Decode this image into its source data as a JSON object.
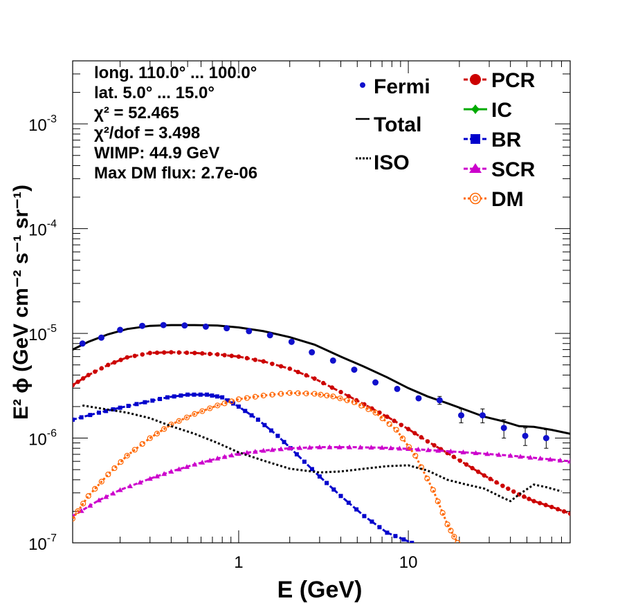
{
  "chart_data": {
    "type": "scatter",
    "xlabel": "E (GeV)",
    "ylabel": "E² ϕ (GeV cm⁻² s⁻¹ sr⁻¹)",
    "xscale": "log",
    "yscale": "log",
    "xlim": [
      0.105,
      90
    ],
    "ylim": [
      1e-07,
      0.004
    ],
    "x_ticks": [
      {
        "v": 1,
        "label": "1"
      },
      {
        "v": 10,
        "label": "10"
      }
    ],
    "y_ticks": [
      {
        "v": 1e-07,
        "base": "10",
        "exp": "-7"
      },
      {
        "v": 1e-06,
        "base": "10",
        "exp": "-6"
      },
      {
        "v": 1e-05,
        "base": "10",
        "exp": "-5"
      },
      {
        "v": 0.0001,
        "base": "10",
        "exp": "-4"
      },
      {
        "v": 0.001,
        "base": "10",
        "exp": "-3"
      }
    ],
    "info": [
      "long. 110.0° ... 100.0°",
      "lat. 5.0° ... 15.0°",
      "χ² = 52.465",
      "χ²/dof = 3.498",
      "WIMP: 44.9 GeV",
      "Max DM flux: 2.7e-06"
    ],
    "legend_left": [
      {
        "name": "Fermi",
        "style": "dot",
        "color": "#0000ff"
      },
      {
        "name": "Total",
        "style": "line",
        "color": "#000000"
      },
      {
        "name": "ISO",
        "style": "dotted",
        "color": "#000000"
      }
    ],
    "legend_right": [
      {
        "name": "PCR",
        "style": "circle",
        "color": "#cc0000"
      },
      {
        "name": "IC",
        "style": "cross",
        "color": "#00aa00"
      },
      {
        "name": "BR",
        "style": "square",
        "color": "#0000cc"
      },
      {
        "name": "SCR",
        "style": "triangle",
        "color": "#cc00cc"
      },
      {
        "name": "DM",
        "style": "opencircle",
        "color": "#ff6600"
      }
    ],
    "fermi": {
      "x": [
        0.12,
        0.155,
        0.2,
        0.27,
        0.36,
        0.48,
        0.64,
        0.85,
        1.15,
        1.53,
        2.05,
        2.7,
        3.6,
        4.8,
        6.4,
        8.6,
        11.5,
        15.3,
        20.5,
        27.4,
        36.6,
        48.9,
        65
      ],
      "y": [
        8e-06,
        9.1e-06,
        1.08e-05,
        1.18e-05,
        1.2e-05,
        1.19e-05,
        1.16e-05,
        1.12e-05,
        1.05e-05,
        9.6e-06,
        8.3e-06,
        6.6e-06,
        5.5e-06,
        4.5e-06,
        3.4e-06,
        2.95e-06,
        2.4e-06,
        2.3e-06,
        1.65e-06,
        1.65e-06,
        1.25e-06,
        1.05e-06,
        1e-06
      ],
      "err": [
        0.0,
        0.0,
        0.0,
        0.0,
        0.0,
        0.0,
        0.0,
        0.0,
        0.0,
        0.0,
        0.0,
        0.0,
        0.0,
        0.0,
        0.0,
        0.0,
        0.0,
        2e-07,
        2.5e-07,
        2.5e-07,
        2.5e-07,
        2e-07,
        2e-07
      ]
    },
    "series": [
      {
        "name": "Total",
        "color": "#000000",
        "style": "solid",
        "x": [
          0.105,
          0.13,
          0.17,
          0.22,
          0.3,
          0.4,
          0.55,
          0.75,
          1.0,
          1.4,
          2.0,
          2.8,
          4.0,
          5.5,
          7.5,
          10,
          13,
          17,
          22,
          28,
          36,
          45,
          55,
          70,
          90
        ],
        "y": [
          7e-06,
          8.3e-06,
          9.8e-06,
          1.1e-05,
          1.18e-05,
          1.2e-05,
          1.2e-05,
          1.19e-05,
          1.14e-05,
          1.05e-05,
          9.2e-06,
          7.8e-06,
          6e-06,
          4.8e-06,
          3.8e-06,
          3e-06,
          2.5e-06,
          2.15e-06,
          1.85e-06,
          1.6e-06,
          1.45e-06,
          1.3e-06,
          1.28e-06,
          1.2e-06,
          1.1e-06
        ]
      },
      {
        "name": "PCR",
        "color": "#cc0000",
        "style": "dashed",
        "marker": "circle",
        "x": [
          0.105,
          0.13,
          0.17,
          0.22,
          0.3,
          0.4,
          0.55,
          0.75,
          1.0,
          1.4,
          2.0,
          2.8,
          4.0,
          5.5,
          7.5,
          10,
          13,
          17,
          22,
          28,
          36,
          45,
          55,
          70,
          90
        ],
        "y": [
          3.2e-06,
          4e-06,
          5e-06,
          5.9e-06,
          6.5e-06,
          6.6e-06,
          6.5e-06,
          6.3e-06,
          6e-06,
          5.4e-06,
          4.6e-06,
          3.7e-06,
          2.75e-06,
          2.1e-06,
          1.6e-06,
          1.22e-06,
          9.3e-07,
          7.2e-07,
          5.6e-07,
          4.4e-07,
          3.5e-07,
          2.9e-07,
          2.5e-07,
          2.2e-07,
          1.9e-07
        ]
      },
      {
        "name": "BR",
        "color": "#0000cc",
        "style": "dashed",
        "marker": "square",
        "x": [
          0.105,
          0.15,
          0.2,
          0.28,
          0.38,
          0.5,
          0.65,
          0.8,
          1.0,
          1.3,
          1.7,
          2.2,
          3.0,
          4.0,
          5.5,
          7.5,
          10.5
        ],
        "y": [
          1.5e-06,
          1.75e-06,
          1.95e-06,
          2.2e-06,
          2.45e-06,
          2.6e-06,
          2.6e-06,
          2.45e-06,
          2e-06,
          1.5e-06,
          1.05e-06,
          7e-07,
          4.3e-07,
          2.8e-07,
          1.8e-07,
          1.25e-07,
          1e-07
        ]
      },
      {
        "name": "SCR",
        "color": "#cc00cc",
        "style": "dashed",
        "marker": "triangle",
        "x": [
          0.105,
          0.15,
          0.2,
          0.3,
          0.4,
          0.55,
          0.75,
          1.0,
          1.4,
          2.0,
          3.0,
          4.5,
          7,
          10,
          15,
          25,
          40,
          60,
          90
        ],
        "y": [
          1.8e-07,
          2.55e-07,
          3.2e-07,
          4.1e-07,
          4.8e-07,
          5.6e-07,
          6.4e-07,
          7.1e-07,
          7.6e-07,
          8e-07,
          8.2e-07,
          8.2e-07,
          8.1e-07,
          7.9e-07,
          7.6e-07,
          7.2e-07,
          6.8e-07,
          6.4e-07,
          6e-07
        ]
      },
      {
        "name": "DM",
        "color": "#ff6600",
        "style": "dotted",
        "marker": "opencircle",
        "x": [
          0.105,
          0.13,
          0.17,
          0.22,
          0.3,
          0.4,
          0.55,
          0.75,
          1.0,
          1.4,
          2.0,
          2.8,
          3.6,
          4.8,
          6.4,
          8.5,
          11,
          14,
          17,
          19.5
        ],
        "y": [
          1.7e-07,
          2.8e-07,
          4.5e-07,
          6.8e-07,
          1e-06,
          1.35e-06,
          1.7e-06,
          2.05e-06,
          2.35e-06,
          2.55e-06,
          2.7e-06,
          2.65e-06,
          2.5e-06,
          2.2e-06,
          1.75e-06,
          1.2e-06,
          6.8e-07,
          3.2e-07,
          1.5e-07,
          1e-07
        ]
      },
      {
        "name": "ISO",
        "color": "#000000",
        "style": "dotted",
        "x": [
          0.12,
          0.16,
          0.22,
          0.3,
          0.4,
          0.55,
          0.75,
          1.0,
          1.4,
          2.0,
          3.0,
          4.0,
          5.5,
          7.5,
          10,
          13,
          17,
          22,
          28,
          36,
          40,
          45,
          55,
          65,
          80
        ],
        "y": [
          2.05e-06,
          1.9e-06,
          1.75e-06,
          1.55e-06,
          1.3e-06,
          1.1e-06,
          9e-07,
          7.3e-07,
          6.1e-07,
          5.1e-07,
          4.7e-07,
          4.8e-07,
          5.1e-07,
          5.4e-07,
          5.5e-07,
          4.9e-07,
          4e-07,
          3.6e-07,
          3.3e-07,
          2.7e-07,
          2.5e-07,
          2.9e-07,
          3.6e-07,
          3.4e-07,
          3.1e-07
        ]
      }
    ]
  }
}
